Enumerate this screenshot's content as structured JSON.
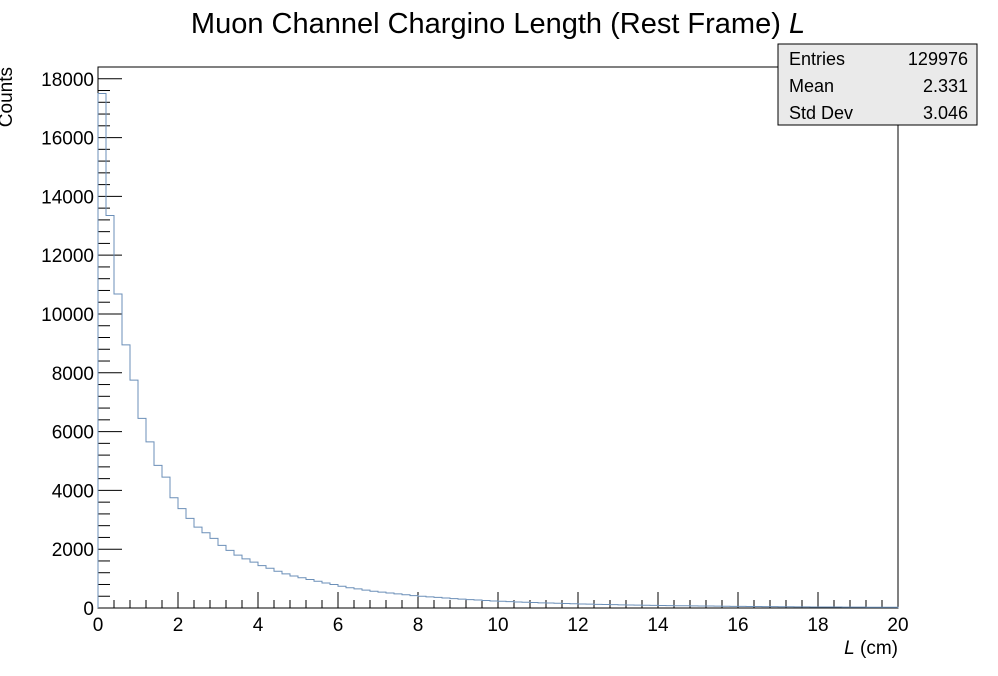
{
  "chart_data": {
    "type": "bar",
    "title_main": "Muon Channel Chargino Length (Rest Frame) ",
    "title_var": "L",
    "xlabel_var": "L",
    "xlabel_unit": " (cm)",
    "ylabel": "Counts",
    "xlim": [
      0,
      20
    ],
    "ylim": [
      0,
      18400
    ],
    "x_ticks": [
      0,
      2,
      4,
      6,
      8,
      10,
      12,
      14,
      16,
      18,
      20
    ],
    "y_ticks": [
      0,
      2000,
      4000,
      6000,
      8000,
      10000,
      12000,
      14000,
      16000,
      18000
    ],
    "bin_width": 0.2,
    "line_color": "#6b8fb8",
    "values": [
      17500,
      13350,
      10680,
      8950,
      7750,
      6450,
      5650,
      4850,
      4450,
      3750,
      3380,
      3050,
      2750,
      2560,
      2370,
      2130,
      1960,
      1800,
      1670,
      1560,
      1440,
      1350,
      1250,
      1160,
      1090,
      1030,
      970,
      910,
      850,
      800,
      740,
      690,
      650,
      610,
      570,
      540,
      510,
      480,
      450,
      420,
      400,
      380,
      360,
      340,
      320,
      300,
      285,
      270,
      255,
      240,
      228,
      216,
      205,
      195,
      185,
      176,
      168,
      160,
      152,
      145,
      138,
      131,
      125,
      119,
      113,
      108,
      103,
      98,
      94,
      90,
      86,
      82,
      78,
      75,
      72,
      69,
      66,
      63,
      60,
      57,
      55,
      52,
      50,
      48,
      46,
      44,
      42,
      40,
      38,
      36,
      35,
      33,
      32,
      30,
      29,
      28,
      27,
      26,
      25,
      24
    ],
    "stats": [
      {
        "label": "Entries",
        "value": "129976"
      },
      {
        "label": "Mean",
        "value": "2.331"
      },
      {
        "label": "Std Dev",
        "value": "3.046"
      }
    ]
  }
}
